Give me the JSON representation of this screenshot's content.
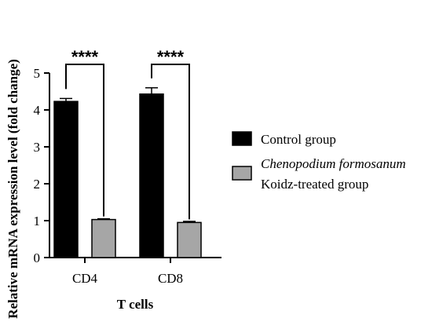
{
  "chart_data": {
    "type": "bar",
    "xlabel": "T cells",
    "ylabel": "Relative mRNA expression level (fold change)",
    "ylim": [
      0,
      5
    ],
    "yticks": [
      "0",
      "1",
      "2",
      "3",
      "4",
      "5"
    ],
    "categories": [
      "CD4",
      "CD8"
    ],
    "series": [
      {
        "name": "Control group",
        "color": "#000000",
        "values": [
          4.23,
          4.43
        ],
        "errors": [
          0.08,
          0.17
        ]
      },
      {
        "name": "Chenopodium formosanum",
        "name_line2": "Koidz-treated group",
        "color": "#a6a6a6",
        "values": [
          1.03,
          0.95
        ],
        "errors": [
          0.02,
          0.03
        ]
      }
    ],
    "significance": [
      {
        "category": "CD4",
        "label": "****"
      },
      {
        "category": "CD8",
        "label": "****"
      }
    ],
    "legend_position": "right"
  }
}
